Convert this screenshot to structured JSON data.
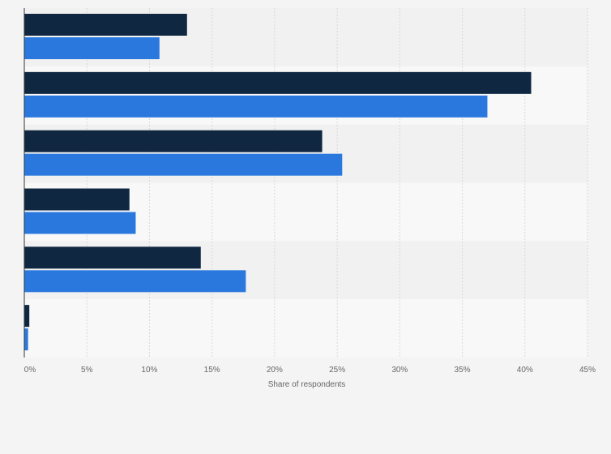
{
  "chart_data": {
    "type": "bar",
    "orientation": "horizontal",
    "categories": [
      "",
      "",
      "",
      "",
      "",
      ""
    ],
    "series": [
      {
        "color": "#0f2741",
        "values": [
          13.0,
          40.5,
          23.8,
          8.4,
          14.1,
          0.4
        ]
      },
      {
        "color": "#2a78de",
        "values": [
          10.8,
          37.0,
          25.4,
          8.9,
          17.7,
          0.3
        ]
      }
    ],
    "x_ticks": [
      "0%",
      "5%",
      "10%",
      "15%",
      "20%",
      "25%",
      "30%",
      "35%",
      "40%",
      "45%"
    ],
    "xlabel": "Share of respondents",
    "ylabel": "",
    "xlim": [
      0,
      45
    ],
    "grid": true,
    "legend": "none"
  }
}
